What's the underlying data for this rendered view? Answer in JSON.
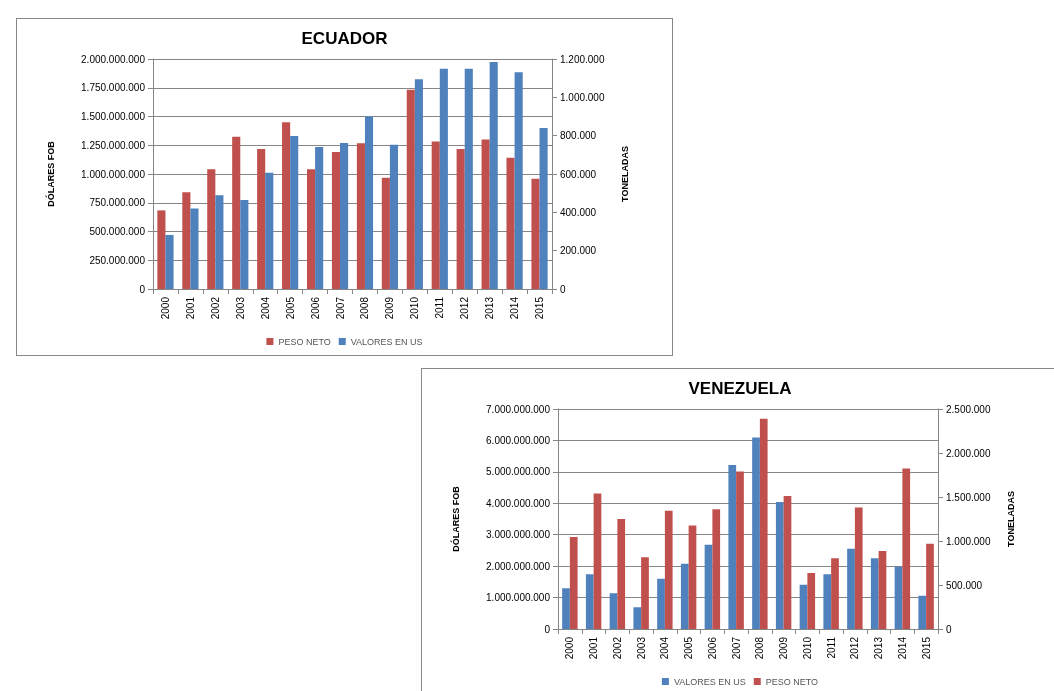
{
  "chart_data": [
    {
      "type": "bar",
      "title": "ECUADOR",
      "ylabel": "DÓLARES FOB",
      "y2label": "TONELADAS",
      "categories": [
        "2000",
        "2001",
        "2002",
        "2003",
        "2004",
        "2005",
        "2006",
        "2007",
        "2008",
        "2009",
        "2010",
        "2011",
        "2012",
        "2013",
        "2014",
        "2015"
      ],
      "series": [
        {
          "name": "PESO NETO",
          "color": "#c0504d",
          "axis": "y2",
          "values": [
            410000,
            505000,
            625000,
            795000,
            730000,
            870000,
            625000,
            715000,
            760000,
            580000,
            1040000,
            770000,
            730000,
            780000,
            685000,
            575000
          ]
        },
        {
          "name": "VALORES EN US",
          "color": "#4f81bd",
          "values": [
            470000000,
            700000000,
            815000000,
            775000000,
            1010000000,
            1330000000,
            1235000000,
            1270000000,
            1500000000,
            1255000000,
            1825000000,
            1915000000,
            1915000000,
            1975000000,
            1885000000,
            1400000000
          ]
        }
      ],
      "ylim": [
        0,
        2000000000
      ],
      "yticks": [
        {
          "value": 0,
          "label": "0"
        },
        {
          "value": 250000000,
          "label": "250.000.000"
        },
        {
          "value": 500000000,
          "label": "500.000.000"
        },
        {
          "value": 750000000,
          "label": "750.000.000"
        },
        {
          "value": 1000000000,
          "label": "1.000.000.000"
        },
        {
          "value": 1250000000,
          "label": "1.250.000.000"
        },
        {
          "value": 1500000000,
          "label": "1.500.000.000"
        },
        {
          "value": 1750000000,
          "label": "1.750.000.000"
        },
        {
          "value": 2000000000,
          "label": "2.000.000.000"
        }
      ],
      "y2lim": [
        0,
        1200000
      ],
      "y2ticks": [
        {
          "value": 0,
          "label": "0"
        },
        {
          "value": 200000,
          "label": "200.000"
        },
        {
          "value": 400000,
          "label": "400.000"
        },
        {
          "value": 600000,
          "label": "600.000"
        },
        {
          "value": 800000,
          "label": "800.000"
        },
        {
          "value": 1000000,
          "label": "1.000.000"
        },
        {
          "value": 1200000,
          "label": "1.200.000"
        }
      ],
      "grid": "y",
      "legend": "bottom"
    },
    {
      "type": "bar",
      "title": "VENEZUELA",
      "ylabel": "DÓLARES FOB",
      "y2label": "TONELADAS",
      "categories": [
        "2000",
        "2001",
        "2002",
        "2003",
        "2004",
        "2005",
        "2006",
        "2007",
        "2008",
        "2009",
        "2010",
        "2011",
        "2012",
        "2013",
        "2014",
        "2015"
      ],
      "series": [
        {
          "name": "VALORES EN US",
          "color": "#4f81bd",
          "values": [
            1300000000,
            1740000000,
            1140000000,
            690000000,
            1600000000,
            2080000000,
            2680000000,
            5220000000,
            6090000000,
            4040000000,
            1410000000,
            1740000000,
            2550000000,
            2250000000,
            1980000000,
            1060000000
          ]
        },
        {
          "name": "PESO NETO",
          "color": "#c0504d",
          "axis": "y2",
          "values": [
            1045000,
            1540000,
            1250000,
            815000,
            1345000,
            1175000,
            1360000,
            1790000,
            2390000,
            1510000,
            635000,
            805000,
            1380000,
            885000,
            1825000,
            970000
          ]
        }
      ],
      "ylim": [
        0,
        7000000000
      ],
      "yticks": [
        {
          "value": 0,
          "label": "0"
        },
        {
          "value": 1000000000,
          "label": "1.000.000.000"
        },
        {
          "value": 2000000000,
          "label": "2.000.000.000"
        },
        {
          "value": 3000000000,
          "label": "3.000.000.000"
        },
        {
          "value": 4000000000,
          "label": "4.000.000.000"
        },
        {
          "value": 5000000000,
          "label": "5.000.000.000"
        },
        {
          "value": 6000000000,
          "label": "6.000.000.000"
        },
        {
          "value": 7000000000,
          "label": "7.000.000.000"
        }
      ],
      "y2lim": [
        0,
        2500000
      ],
      "y2ticks": [
        {
          "value": 0,
          "label": "0"
        },
        {
          "value": 500000,
          "label": "500.000"
        },
        {
          "value": 1000000,
          "label": "1.000.000"
        },
        {
          "value": 1500000,
          "label": "1.500.000"
        },
        {
          "value": 2000000,
          "label": "2.000.000"
        },
        {
          "value": 2500000,
          "label": "2.500.000"
        }
      ],
      "grid": "y",
      "legend": "bottom"
    }
  ]
}
